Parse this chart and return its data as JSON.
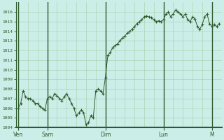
{
  "background_color": "#cceee8",
  "line_color": "#2d5a2d",
  "marker_color": "#2d5a2d",
  "grid_color": "#a8cca8",
  "axis_color": "#2d5a2d",
  "ylim": [
    1004,
    1017
  ],
  "yticks": [
    1004,
    1005,
    1006,
    1007,
    1008,
    1009,
    1010,
    1011,
    1012,
    1013,
    1014,
    1015,
    1016
  ],
  "x_day_labels": [
    "Ven",
    "Sam",
    "Dim",
    "Lun",
    "M"
  ],
  "x_day_positions": [
    0,
    12,
    36,
    60,
    80
  ],
  "total_points": 84,
  "data_points": [
    1006.0,
    1006.5,
    1007.8,
    1007.2,
    1007.0,
    1007.0,
    1006.8,
    1006.5,
    1006.5,
    1006.2,
    1006.0,
    1005.8,
    1007.0,
    1007.2,
    1007.0,
    1007.5,
    1007.3,
    1007.0,
    1006.8,
    1007.2,
    1007.5,
    1007.0,
    1006.5,
    1006.0,
    1005.2,
    1005.5,
    1005.8,
    1005.5,
    1004.3,
    1004.5,
    1005.2,
    1005.0,
    1007.8,
    1008.0,
    1007.8,
    1007.5,
    1009.2,
    1011.5,
    1011.8,
    1012.3,
    1012.5,
    1012.7,
    1013.0,
    1013.3,
    1013.5,
    1013.8,
    1014.0,
    1014.2,
    1014.5,
    1014.8,
    1015.0,
    1015.2,
    1015.5,
    1015.6,
    1015.5,
    1015.4,
    1015.2,
    1015.0,
    1015.1,
    1015.0,
    1015.2,
    1015.8,
    1016.0,
    1015.5,
    1015.8,
    1016.2,
    1016.0,
    1015.8,
    1015.5,
    1015.8,
    1015.2,
    1015.0,
    1015.5,
    1015.3,
    1014.5,
    1014.2,
    1014.7,
    1015.5,
    1015.8,
    1014.8,
    1014.5,
    1014.7,
    1014.5,
    1014.8
  ]
}
